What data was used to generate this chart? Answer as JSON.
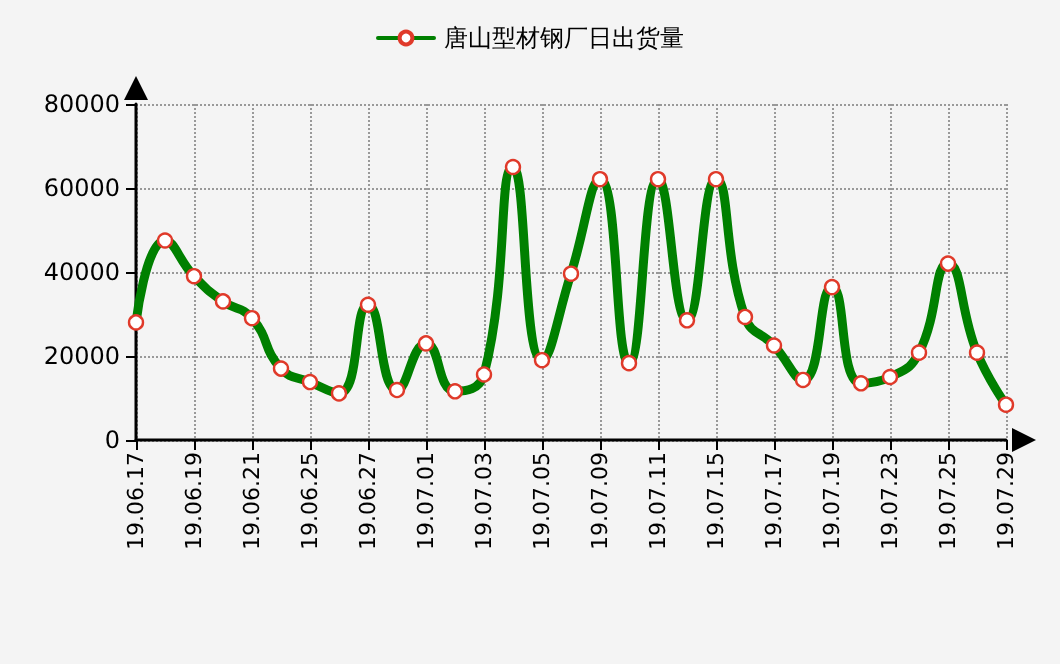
{
  "chart_data": {
    "type": "line",
    "categories": [
      "19.06.17",
      null,
      "19.06.19",
      null,
      "19.06.21",
      null,
      "19.06.25",
      null,
      "19.06.27",
      null,
      "19.07.01",
      null,
      "19.07.03",
      null,
      "19.07.05",
      null,
      "19.07.09",
      null,
      "19.07.11",
      null,
      "19.07.15",
      null,
      "19.07.17",
      null,
      "19.07.19",
      null,
      "19.07.23",
      null,
      "19.07.25",
      null,
      "19.07.29"
    ],
    "series": [
      {
        "name": "唐山型材钢厂日出货量",
        "color": "#008000",
        "values": [
          28000,
          47500,
          39000,
          33000,
          29000,
          17000,
          13800,
          11100,
          32200,
          11900,
          23000,
          11600,
          15600,
          65000,
          19000,
          39600,
          62100,
          18300,
          62100,
          28500,
          62100,
          29300,
          22500,
          14300,
          36400,
          13500,
          15000,
          20800,
          42000,
          20800,
          8400
        ]
      }
    ],
    "ylim": [
      0,
      80000
    ],
    "yticks": [
      0,
      20000,
      40000,
      60000,
      80000
    ],
    "grid": true,
    "legend": "top",
    "marker": "circle",
    "line_style": "solid"
  }
}
